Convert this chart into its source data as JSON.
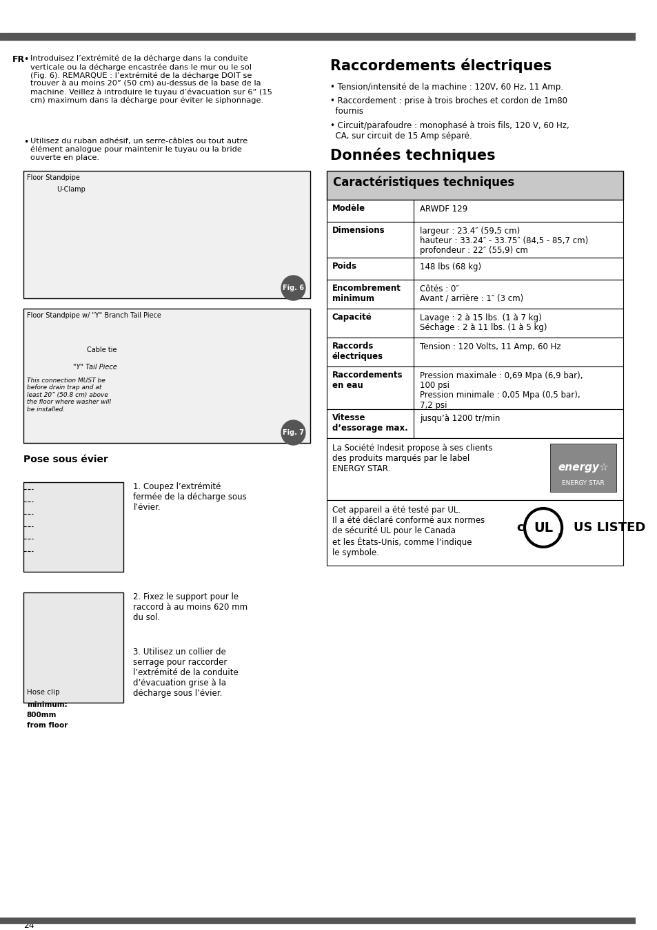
{
  "page_bg": "#ffffff",
  "dark_bar_color": "#555555",
  "section_header_bg": "#c8c8c8",
  "table_border": "#000000",
  "table_row_bg": "#ffffff",
  "left_col_header_bg": "#ffffff",
  "raccordements_title": "Raccordements électriques",
  "raccordements_bullets": [
    "• Tension/intensité de la machine : 120V, 60 Hz, 11 Amp.",
    "• Raccordement : prise à trois broches et cordon de 1m80\n  fournis",
    "• Circuit/parafoudre : monophasé à trois fils, 120 V, 60 Hz,\n  CA, sur circuit de 15 Amp séparé."
  ],
  "donnees_title": "Données techniques",
  "caract_header": "Caractéristiques techniques",
  "table_rows": [
    {
      "label": "Modèle",
      "label2": "",
      "value": "ARWDF 129",
      "value2": "",
      "value3": ""
    },
    {
      "label": "Dimensions",
      "label2": "",
      "value": "largeur : 23.4″ (59,5 cm)",
      "value2": "hauteur : 33.24″ - 33.75″ (84,5 - 85,7 cm)",
      "value3": "profondeur : 22″ (55,9) cm"
    },
    {
      "label": "Poids",
      "label2": "",
      "value": "148 lbs (68 kg)",
      "value2": "",
      "value3": ""
    },
    {
      "label": "Encombrement",
      "label2": "minimum",
      "value": "Côtés : 0″",
      "value2": "Avant / arrière : 1″ (3 cm)",
      "value3": ""
    },
    {
      "label": "Capacité",
      "label2": "",
      "value": "Lavage : 2 à 15 lbs. (1 à 7 kg)",
      "value2": "Séchage : 2 à 11 lbs. (1 à 5 kg)",
      "value3": ""
    },
    {
      "label": "Raccords",
      "label2": "électriques",
      "value": "Tension : 120 Volts, 11 Amp, 60 Hz",
      "value2": "",
      "value3": ""
    },
    {
      "label": "Raccordements",
      "label2": "en eau",
      "value": "Pression maximale : 0,69 Mpa (6,9 bar),",
      "value2": "100 psi",
      "value3": "Pression minimale : 0,05 Mpa (0,5 bar),\n7,2 psi"
    },
    {
      "label": "Vitesse",
      "label2": "d’essorage max.",
      "value": "jusqu’à 1200 tr/min",
      "value2": "",
      "value3": ""
    }
  ],
  "energy_star_text": "La Société Indesit propose à ses clients\ndes produits marqués par le label\nENERGY STAR.",
  "ul_text": "Cet appareil a été testé par UL.\nIl a été déclaré conformé aux normes\nde sécurité UL pour le Canada\net les États-Unis, comme l’indique\nle symbole.",
  "page_number": "24",
  "fr_label": "FR",
  "left_title_pose": "Pose sous évier",
  "left_bullet1": "1. Coupez l’extrémité\nfermée de la décharge sous\nl’évier.",
  "left_bullet2": "2. Fixez le support pour le\nraccord à au moins 620 mm\ndu sol.",
  "left_bullet3": "3. Utilisez un collier de\nserrage pour raccorder\nl’extrémité de la conduite\nd’évacuation grise à la\ndécharge sous l’évier.",
  "left_intro_text": "Introduisez l’extrémité de la décharge dans la conduite\nverticale ou la décharge encastrée dans le mur ou le sol\n(Fig. 6). REMARQUE : l’extrémité de la décharge DOIT se\ntrouver à au moins 20” (50 cm) au-dessus de la base de la\nmachine. Veillez à introduire le tuyau d’évacuation sur 6” (15\ncm) maximum dans la décharge pour éviter le siphonnage.",
  "left_intro_text2": "Utilisez du ruban adhésif, un serre-câbles ou tout autre\nélément analogue pour maintenir le tuyau ou la bride\nouverte en place."
}
